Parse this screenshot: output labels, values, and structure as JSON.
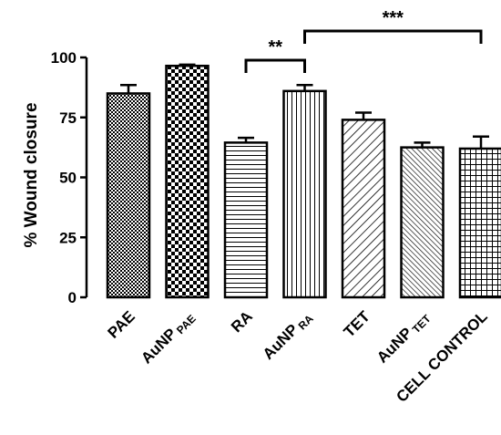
{
  "chart_data": {
    "type": "bar",
    "ylabel": "% Wound closure",
    "ylim": [
      0,
      100
    ],
    "yticks": [
      0,
      25,
      50,
      75,
      100
    ],
    "categories": [
      {
        "main": "PAE",
        "sub": ""
      },
      {
        "main": "AuNP",
        "sub": "PAE"
      },
      {
        "main": "RA",
        "sub": ""
      },
      {
        "main": "AuNP",
        "sub": "RA"
      },
      {
        "main": "TET",
        "sub": ""
      },
      {
        "main": "AuNP",
        "sub": "TET"
      },
      {
        "main": "CELL CONTROL",
        "sub": ""
      }
    ],
    "values": [
      85,
      96.5,
      64.5,
      86,
      74,
      62.5,
      62
    ],
    "errors": [
      3.5,
      0.5,
      2,
      2.5,
      3,
      2,
      5
    ],
    "patterns": [
      "small-check",
      "large-check",
      "horizontal-lines",
      "vertical-lines",
      "diagonal-wide",
      "diagonal-dense",
      "grid"
    ],
    "significance": [
      {
        "from": 2,
        "to": 3,
        "label": "**"
      },
      {
        "from": 3,
        "to": 6,
        "label": "***"
      }
    ],
    "grid": false,
    "legend": "none"
  }
}
